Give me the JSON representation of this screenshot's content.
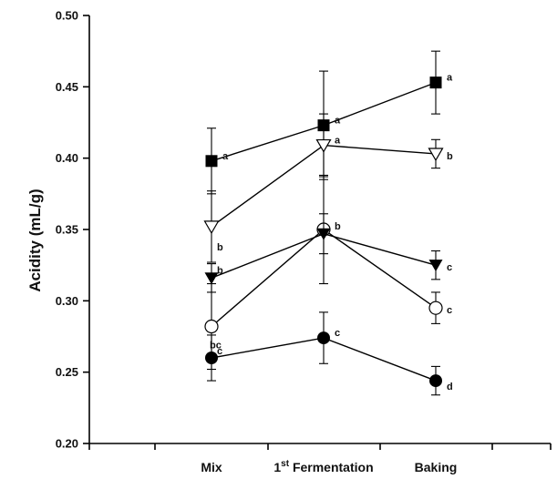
{
  "chart_data": {
    "type": "line",
    "ylabel": "Acidity (mL/g)",
    "xlabel": "",
    "categories": [
      {
        "main": "Mix",
        "sup": ""
      },
      {
        "main": "1",
        "sup": "st",
        "rest": " Fermentation"
      },
      {
        "main": "Baking",
        "sup": ""
      }
    ],
    "ylim": [
      0.2,
      0.5
    ],
    "yticks": [
      "0.20",
      "0.25",
      "0.30",
      "0.35",
      "0.40",
      "0.45",
      "0.50"
    ],
    "grid": false,
    "legend": "none",
    "series": [
      {
        "marker": "filled-square",
        "values": [
          0.398,
          0.423,
          0.453
        ],
        "errors": [
          0.023,
          0.038,
          0.022
        ],
        "letters": [
          "a",
          "a",
          "a"
        ]
      },
      {
        "marker": "open-triangle-down",
        "values": [
          0.352,
          0.409,
          0.403
        ],
        "errors": [
          0.025,
          0.022,
          0.01
        ],
        "letters": [
          "b",
          "a",
          "b"
        ]
      },
      {
        "marker": "half-circle",
        "values": [
          0.282,
          0.35,
          0.295
        ],
        "errors": [
          0.03,
          0.038,
          0.011
        ],
        "letters": [
          "bc",
          "b",
          "c"
        ]
      },
      {
        "marker": "filled-triangle-down",
        "values": [
          0.316,
          0.347,
          0.325
        ],
        "errors": [
          0.01,
          0.014,
          0.01
        ],
        "letters": [
          "b",
          "",
          "c"
        ]
      },
      {
        "marker": "filled-circle",
        "values": [
          0.26,
          0.274,
          0.244
        ],
        "errors": [
          0.016,
          0.018,
          0.01
        ],
        "letters": [
          "c",
          "c",
          "d"
        ]
      }
    ]
  }
}
